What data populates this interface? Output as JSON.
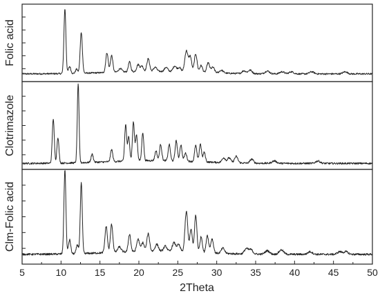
{
  "chart_data": {
    "type": "line",
    "xlabel": "2Theta",
    "xlim": [
      5,
      50
    ],
    "x_ticks": [
      5,
      10,
      15,
      20,
      25,
      30,
      35,
      40,
      45,
      50
    ],
    "grid": false,
    "line_color": "#222222",
    "series": [
      {
        "name": "Folic acid",
        "baseline": 0.07,
        "peaks": [
          [
            10.5,
            0.92,
            0.18
          ],
          [
            11.1,
            0.1,
            0.2
          ],
          [
            12.0,
            0.06,
            0.2
          ],
          [
            12.6,
            0.58,
            0.2
          ],
          [
            15.9,
            0.28,
            0.22
          ],
          [
            16.5,
            0.24,
            0.22
          ],
          [
            17.6,
            0.05,
            0.3
          ],
          [
            18.8,
            0.14,
            0.22
          ],
          [
            19.9,
            0.1,
            0.25
          ],
          [
            20.4,
            0.08,
            0.25
          ],
          [
            21.2,
            0.18,
            0.25
          ],
          [
            22.1,
            0.06,
            0.3
          ],
          [
            23.5,
            0.06,
            0.3
          ],
          [
            24.6,
            0.08,
            0.3
          ],
          [
            25.2,
            0.06,
            0.3
          ],
          [
            26.1,
            0.3,
            0.28
          ],
          [
            26.6,
            0.22,
            0.25
          ],
          [
            27.3,
            0.26,
            0.25
          ],
          [
            28.0,
            0.1,
            0.25
          ],
          [
            28.9,
            0.14,
            0.25
          ],
          [
            29.5,
            0.08,
            0.3
          ],
          [
            30.6,
            0.04,
            0.35
          ],
          [
            33.5,
            0.04,
            0.35
          ],
          [
            34.3,
            0.05,
            0.35
          ],
          [
            36.5,
            0.04,
            0.4
          ],
          [
            38.4,
            0.03,
            0.4
          ],
          [
            39.6,
            0.03,
            0.4
          ],
          [
            42.2,
            0.03,
            0.4
          ],
          [
            46.5,
            0.03,
            0.4
          ]
        ]
      },
      {
        "name": "Clotrimazole",
        "baseline": 0.04,
        "peaks": [
          [
            9.0,
            0.55,
            0.18
          ],
          [
            9.6,
            0.32,
            0.18
          ],
          [
            12.2,
            0.98,
            0.16
          ],
          [
            14.0,
            0.1,
            0.2
          ],
          [
            16.5,
            0.15,
            0.2
          ],
          [
            18.3,
            0.45,
            0.18
          ],
          [
            18.7,
            0.3,
            0.18
          ],
          [
            19.3,
            0.48,
            0.18
          ],
          [
            19.7,
            0.32,
            0.18
          ],
          [
            20.5,
            0.35,
            0.18
          ],
          [
            22.2,
            0.12,
            0.2
          ],
          [
            22.8,
            0.2,
            0.2
          ],
          [
            23.9,
            0.2,
            0.2
          ],
          [
            24.8,
            0.25,
            0.2
          ],
          [
            25.4,
            0.2,
            0.2
          ],
          [
            26.0,
            0.1,
            0.22
          ],
          [
            27.3,
            0.2,
            0.2
          ],
          [
            27.9,
            0.22,
            0.2
          ],
          [
            28.4,
            0.12,
            0.2
          ],
          [
            30.9,
            0.06,
            0.3
          ],
          [
            31.6,
            0.06,
            0.3
          ],
          [
            32.5,
            0.08,
            0.3
          ],
          [
            34.5,
            0.05,
            0.3
          ],
          [
            37.4,
            0.03,
            0.4
          ],
          [
            43.0,
            0.03,
            0.4
          ]
        ]
      },
      {
        "name": "Clm-Folic acid",
        "baseline": 0.08,
        "peaks": [
          [
            10.5,
            0.96,
            0.18
          ],
          [
            11.1,
            0.16,
            0.2
          ],
          [
            12.1,
            0.1,
            0.2
          ],
          [
            12.6,
            0.8,
            0.18
          ],
          [
            15.8,
            0.3,
            0.22
          ],
          [
            16.5,
            0.32,
            0.22
          ],
          [
            17.5,
            0.06,
            0.3
          ],
          [
            18.8,
            0.2,
            0.22
          ],
          [
            19.9,
            0.14,
            0.25
          ],
          [
            20.5,
            0.1,
            0.25
          ],
          [
            21.2,
            0.2,
            0.25
          ],
          [
            22.3,
            0.08,
            0.3
          ],
          [
            23.4,
            0.06,
            0.3
          ],
          [
            24.5,
            0.1,
            0.3
          ],
          [
            25.1,
            0.08,
            0.3
          ],
          [
            26.1,
            0.46,
            0.25
          ],
          [
            26.7,
            0.26,
            0.22
          ],
          [
            27.3,
            0.42,
            0.22
          ],
          [
            28.0,
            0.18,
            0.22
          ],
          [
            28.8,
            0.2,
            0.22
          ],
          [
            29.4,
            0.16,
            0.25
          ],
          [
            30.8,
            0.06,
            0.3
          ],
          [
            33.8,
            0.06,
            0.35
          ],
          [
            34.4,
            0.05,
            0.35
          ],
          [
            36.5,
            0.04,
            0.4
          ],
          [
            38.3,
            0.05,
            0.4
          ],
          [
            42.0,
            0.03,
            0.4
          ],
          [
            45.8,
            0.03,
            0.4
          ],
          [
            46.6,
            0.03,
            0.4
          ]
        ]
      }
    ]
  }
}
